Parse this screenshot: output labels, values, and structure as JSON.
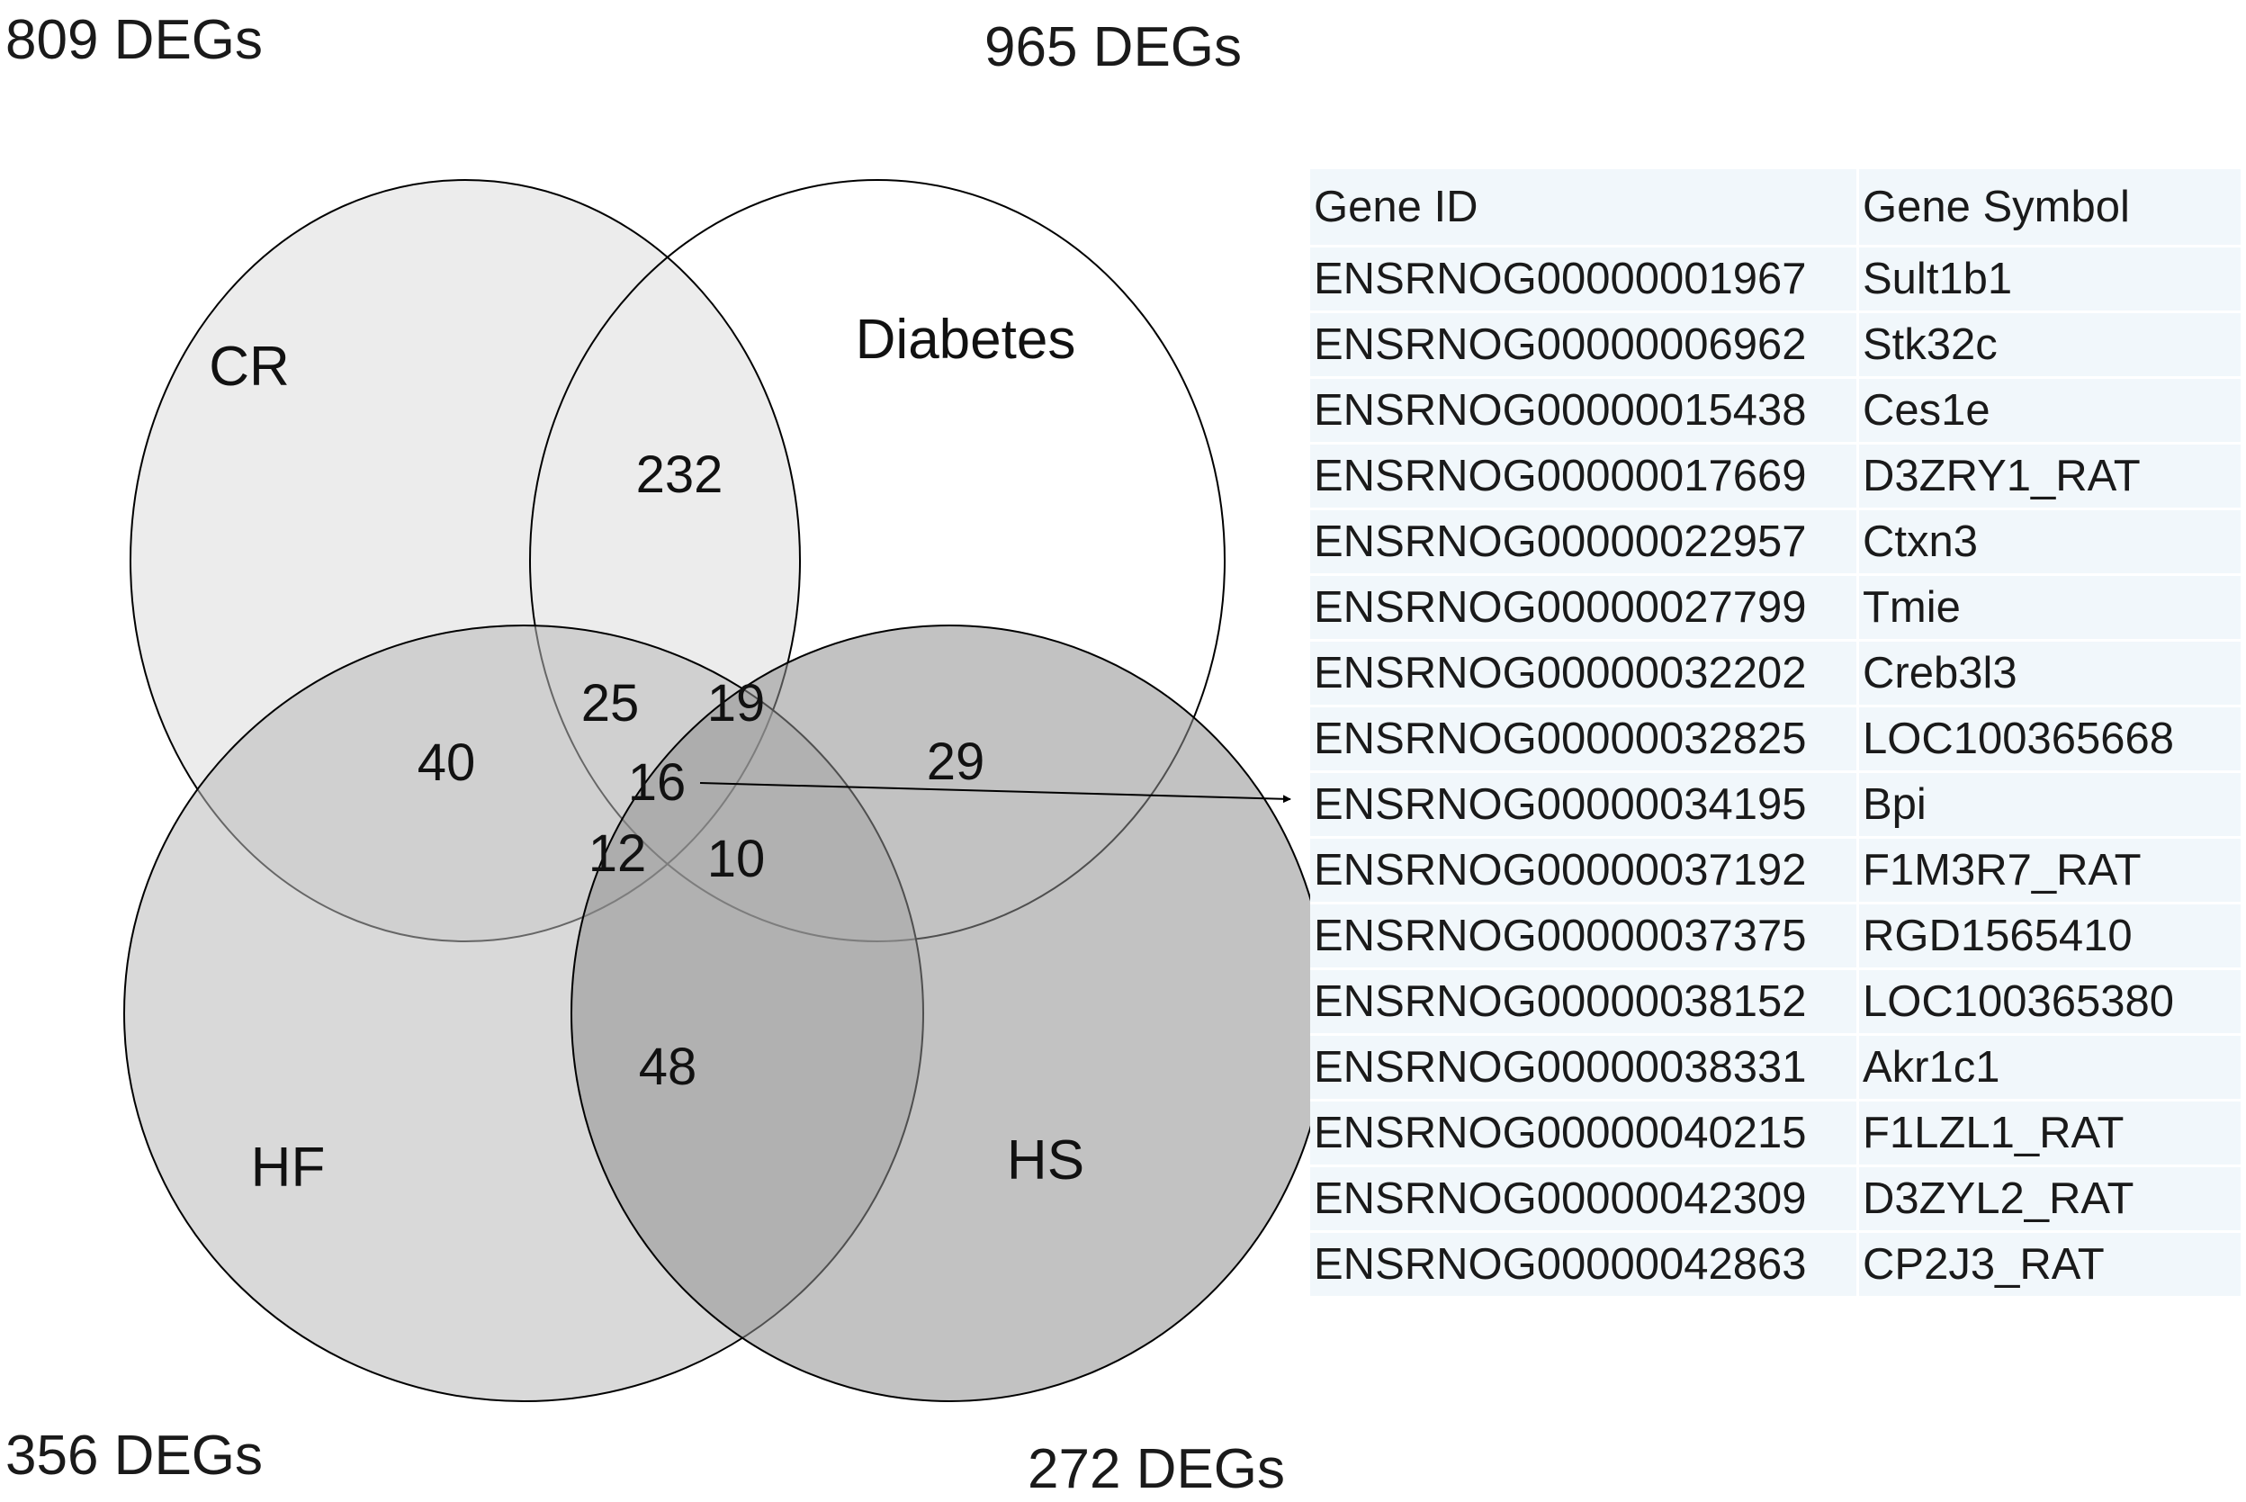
{
  "sets": [
    {
      "name": "CR",
      "count_label": "809 DEGs",
      "fill": "#dddddd",
      "opacity": 0.55
    },
    {
      "name": "Diabetes",
      "count_label": "965 DEGs",
      "fill": "#ffffff",
      "opacity": 0.0
    },
    {
      "name": "HF",
      "count_label": "356 DEGs",
      "fill": "#b9b9b9",
      "opacity": 0.55
    },
    {
      "name": "HS",
      "count_label": "272 DEGs",
      "fill": "#8f8f8f",
      "opacity": 0.55
    }
  ],
  "regions": {
    "cr_diabetes": "232",
    "cr_hf": "40",
    "cr_diabetes_hf": "25",
    "cr_diabetes_hs": "19",
    "all_four": "16",
    "diabetes_hs": "29",
    "cr_hf_hs": "12",
    "diabetes_hf_hs": "10",
    "hf_hs": "48"
  },
  "table": {
    "headers": [
      "Gene ID",
      "Gene Symbol"
    ],
    "rows": [
      [
        "ENSRNOG00000001967",
        "Sult1b1"
      ],
      [
        "ENSRNOG00000006962",
        "Stk32c"
      ],
      [
        "ENSRNOG00000015438",
        "Ces1e"
      ],
      [
        "ENSRNOG00000017669",
        "D3ZRY1_RAT"
      ],
      [
        "ENSRNOG00000022957",
        "Ctxn3"
      ],
      [
        "ENSRNOG00000027799",
        "Tmie"
      ],
      [
        "ENSRNOG00000032202",
        "Creb3l3"
      ],
      [
        "ENSRNOG00000032825",
        "LOC100365668"
      ],
      [
        "ENSRNOG00000034195",
        "Bpi"
      ],
      [
        "ENSRNOG00000037192",
        "F1M3R7_RAT"
      ],
      [
        "ENSRNOG00000037375",
        "RGD1565410"
      ],
      [
        "ENSRNOG00000038152",
        "LOC100365380"
      ],
      [
        "ENSRNOG00000038331",
        "Akr1c1"
      ],
      [
        "ENSRNOG00000040215",
        "F1LZL1_RAT"
      ],
      [
        "ENSRNOG00000042309",
        "D3ZYL2_RAT"
      ],
      [
        "ENSRNOG00000042863",
        "CP2J3_RAT"
      ]
    ]
  }
}
